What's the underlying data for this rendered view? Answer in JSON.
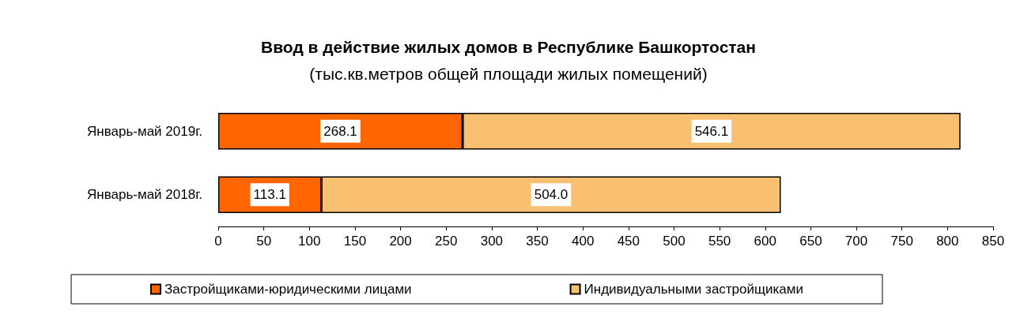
{
  "chart_data": {
    "type": "bar",
    "orientation": "horizontal",
    "stacked": true,
    "title": "Ввод в действие жилых домов в Республике Башкортостан",
    "subtitle": "(тыс.кв.метров общей площади жилых помещений)",
    "categories": [
      "Январь-май 2019г.",
      "Январь-май 2018г."
    ],
    "series": [
      {
        "name": "Застройщиками-юридическими лицами",
        "color": "#ff6600",
        "values": [
          268.1,
          113.1
        ],
        "value_labels": [
          "268.1",
          "113.1"
        ]
      },
      {
        "name": "Индивидуальными застройщиками",
        "color": "#f8c070",
        "values": [
          546.1,
          504.0
        ],
        "value_labels": [
          "546.1",
          "504.0"
        ]
      }
    ],
    "xlim": [
      0,
      850
    ],
    "xticks": [
      0,
      50,
      100,
      150,
      200,
      250,
      300,
      350,
      400,
      450,
      500,
      550,
      600,
      650,
      700,
      750,
      800,
      850
    ],
    "grid": false,
    "legend": "bottom"
  }
}
